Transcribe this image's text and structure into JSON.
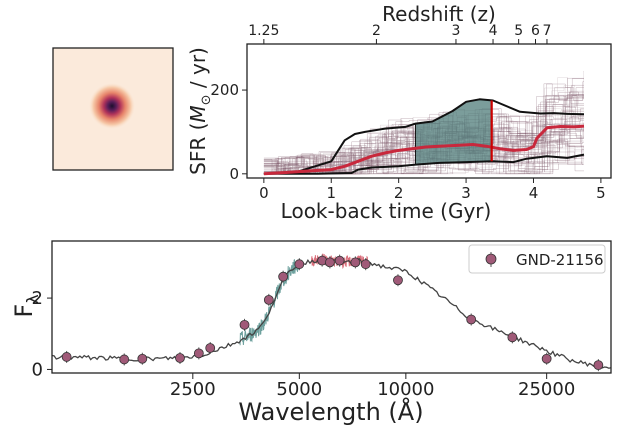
{
  "chart_data": [
    {
      "type": "heatmap",
      "panel": "galaxy-cutout-image",
      "description_note": "",
      "colormap": [
        "#fdf2e7",
        "#f6c9a8",
        "#e7846a",
        "#b1345a",
        "#5a1e59",
        "#1c0f2c"
      ]
    },
    {
      "type": "line",
      "panel": "star-formation-history",
      "xlabel": "Look-back time (Gyr)",
      "ylabel": "SFR (M☉ / yr)",
      "ylabel_parts": {
        "main": "SFR (",
        "sym": "M",
        "sub": "⊙",
        "tail": " / yr)"
      },
      "top_axis_label": "Redshift (z)",
      "xlim": [
        -0.25,
        5.15
      ],
      "ylim": [
        -10,
        310
      ],
      "xticks": [
        0,
        1,
        2,
        3,
        4,
        5
      ],
      "yticks": [
        0,
        200
      ],
      "top_ticks": [
        {
          "label": "1.25",
          "lbt": 0.0
        },
        {
          "label": "2",
          "lbt": 1.67
        },
        {
          "label": "3",
          "lbt": 2.85
        },
        {
          "label": "4",
          "lbt": 3.4
        },
        {
          "label": "5",
          "lbt": 3.78
        },
        {
          "label": "6",
          "lbt": 4.03
        },
        {
          "label": "7",
          "lbt": 4.2
        }
      ],
      "shaded_region": {
        "x0": 2.25,
        "x1": 3.4,
        "color": "#4f7c79"
      },
      "marker_line": {
        "x": 3.38,
        "color": "#cc0000"
      },
      "series": [
        {
          "role": "median",
          "color": "#c8283c",
          "x": [
            0.0,
            0.3,
            0.6,
            1.0,
            1.2,
            1.4,
            1.6,
            1.8,
            2.0,
            2.2,
            2.4,
            2.6,
            2.9,
            3.1,
            3.3,
            3.5,
            3.7,
            3.9,
            4.0,
            4.05,
            4.2,
            4.4,
            4.6,
            4.75
          ],
          "y": [
            0,
            3,
            6,
            10,
            18,
            30,
            42,
            50,
            56,
            60,
            64,
            66,
            68,
            70,
            66,
            60,
            56,
            58,
            65,
            85,
            110,
            113,
            112,
            114
          ]
        },
        {
          "role": "upper-16-84",
          "color": "#111111",
          "x": [
            0.0,
            0.5,
            1.0,
            1.2,
            1.35,
            1.5,
            1.8,
            2.1,
            2.25,
            2.5,
            2.8,
            3.0,
            3.2,
            3.4,
            3.8,
            4.1,
            4.3,
            4.5,
            4.75
          ],
          "y": [
            0,
            5,
            30,
            80,
            95,
            100,
            108,
            112,
            120,
            125,
            150,
            172,
            178,
            175,
            148,
            144,
            145,
            143,
            142
          ]
        },
        {
          "role": "lower-16-84",
          "color": "#111111",
          "x": [
            0.0,
            0.8,
            1.3,
            1.4,
            1.6,
            2.0,
            2.25,
            2.6,
            3.0,
            3.4,
            3.7,
            3.9,
            4.2,
            4.5,
            4.75
          ],
          "y": [
            0,
            0,
            2,
            10,
            15,
            18,
            22,
            26,
            28,
            30,
            28,
            36,
            42,
            38,
            46
          ]
        }
      ]
    },
    {
      "type": "scatter",
      "panel": "spectral-energy-distribution",
      "xlabel": "Wavelength (Å)",
      "ylabel": "Fλ",
      "ylabel_parts": {
        "main": "F",
        "sub": "λ"
      },
      "xscale": "log",
      "xlim": [
        1000,
        38000
      ],
      "ylim": [
        -0.1,
        3.6
      ],
      "xticks": [
        2500,
        5000,
        10000,
        25000
      ],
      "yticks": [
        0,
        2
      ],
      "legend": {
        "placement": "top-right",
        "entries": [
          "GND-21156"
        ]
      },
      "series": [
        {
          "name": "GND-21156",
          "color": "#a05a78",
          "x": [
            1100,
            1600,
            1800,
            2300,
            2600,
            2800,
            3500,
            4100,
            4500,
            5000,
            5800,
            6100,
            6500,
            7200,
            7700,
            9500,
            15300,
            20000,
            25000,
            35000
          ],
          "y": [
            0.35,
            0.28,
            0.3,
            0.32,
            0.45,
            0.6,
            1.25,
            1.95,
            2.6,
            2.95,
            3.05,
            3.0,
            3.05,
            3.0,
            2.95,
            2.5,
            1.4,
            0.9,
            0.3,
            0.12
          ]
        },
        {
          "role": "model",
          "color": "#444444",
          "x": [
            1000,
            1300,
            1600,
            2000,
            2400,
            2700,
            3000,
            3300,
            3600,
            3800,
            4000,
            4200,
            4500,
            4800,
            5200,
            5800,
            6500,
            7500,
            8500,
            10000,
            12000,
            15000,
            18000,
            22000,
            26000,
            30000,
            35000,
            38000
          ],
          "y": [
            0.35,
            0.33,
            0.3,
            0.3,
            0.34,
            0.42,
            0.6,
            0.75,
            0.95,
            1.1,
            1.35,
            1.85,
            2.5,
            2.85,
            3.0,
            3.1,
            3.0,
            3.05,
            2.9,
            2.75,
            2.2,
            1.45,
            1.1,
            0.75,
            0.45,
            0.22,
            0.1,
            0.05
          ]
        },
        {
          "role": "spectrum-blue",
          "color": "#4a8a86",
          "xrange": [
            3400,
            5000
          ]
        },
        {
          "role": "spectrum-red",
          "color": "#d04a5a",
          "xrange": [
            5400,
            7800
          ]
        }
      ]
    }
  ]
}
